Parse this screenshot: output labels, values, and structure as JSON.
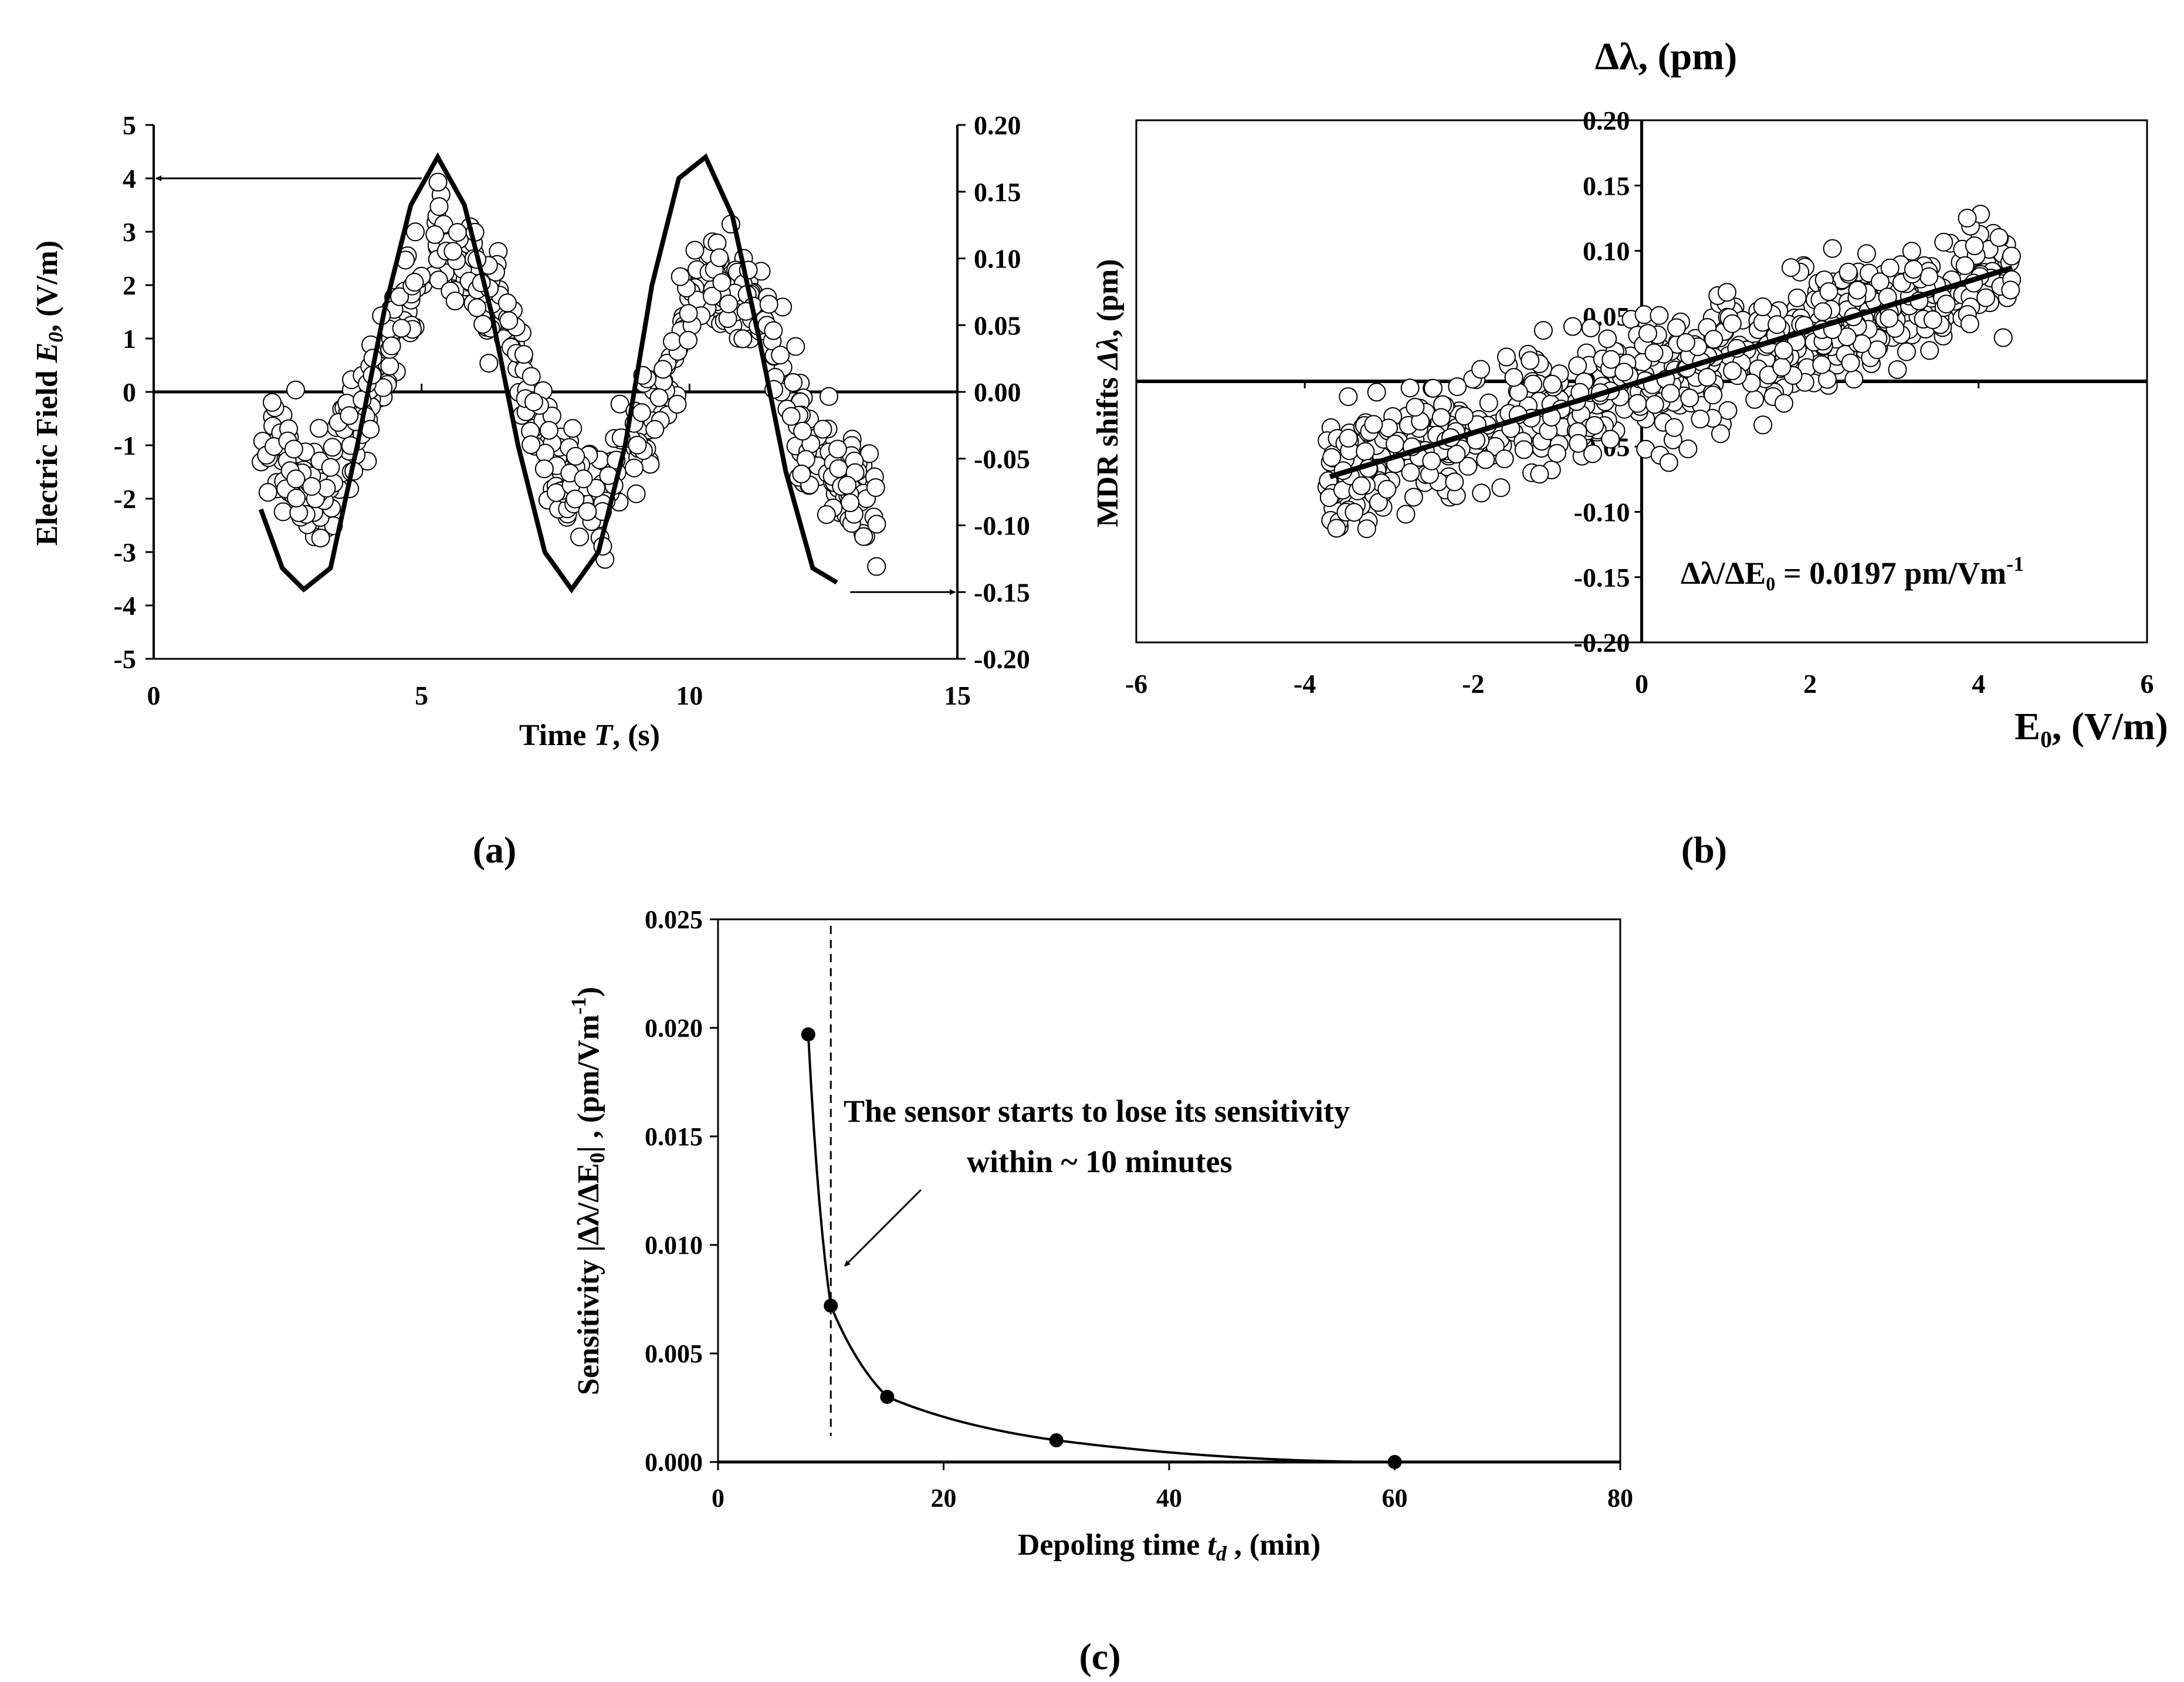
{
  "chart_data": [
    {
      "id": "a",
      "type": "scatter",
      "panel_label": "(a)",
      "xlabel_prefix": "Time ",
      "xlabel_var": "T",
      "xlabel_suffix": ", (s)",
      "ylabel_left_prefix": "Electric Field ",
      "ylabel_left_var": "E",
      "ylabel_left_sub": "0",
      "ylabel_left_suffix": ", (V/m)",
      "ylabel_right_prefix": "MDR shifts ",
      "ylabel_right_var": "Δλ",
      "ylabel_right_suffix": ", (pm)",
      "xlim": [
        0,
        15
      ],
      "ylim_left": [
        -5,
        5
      ],
      "ylim_right": [
        -0.2,
        0.2
      ],
      "xticks": [
        "0",
        "5",
        "10",
        "15"
      ],
      "yticks_left": [
        "5",
        "4",
        "3",
        "2",
        "1",
        "0",
        "-1",
        "-2",
        "-3",
        "-4",
        "-5"
      ],
      "yticks_right": [
        "0.20",
        "0.15",
        "0.10",
        "0.05",
        "0.00",
        "-0.05",
        "-0.10",
        "-0.15",
        "-0.20"
      ],
      "series": [
        {
          "name": "Electric field E0 (left axis)",
          "style": "line",
          "x": [
            2.0,
            2.4,
            2.8,
            3.3,
            3.8,
            4.3,
            4.8,
            5.3,
            5.8,
            6.3,
            6.8,
            7.3,
            7.8,
            8.3,
            8.8,
            9.3,
            9.8,
            10.3,
            10.8,
            11.3,
            11.8,
            12.3,
            12.8
          ],
          "y": [
            -2.2,
            -3.3,
            -3.7,
            -3.3,
            -1.0,
            1.5,
            3.5,
            4.4,
            3.5,
            1.5,
            -1.0,
            -3.0,
            -3.7,
            -3.0,
            -1.0,
            2.0,
            4.0,
            4.4,
            3.3,
            1.0,
            -1.5,
            -3.3,
            -3.6
          ]
        },
        {
          "name": "MDR shifts Δλ (right axis)",
          "style": "markers",
          "trend_x": [
            2.0,
            3.2,
            4.5,
            5.3,
            6.5,
            7.5,
            8.3,
            9.2,
            10.2,
            11.2,
            12.3,
            13.5
          ],
          "trend_y": [
            -0.03,
            -0.075,
            0.04,
            0.12,
            0.06,
            -0.06,
            -0.08,
            -0.02,
            0.08,
            0.07,
            -0.05,
            -0.08
          ],
          "spread": 0.04,
          "count": 620
        }
      ],
      "annotations": [
        {
          "text": "arrow pointing to left axis",
          "from": [
            5.0,
            4.0
          ],
          "to": [
            0.0,
            4.0
          ]
        },
        {
          "text": "arrow pointing to right axis",
          "from": [
            13.0,
            -0.15
          ],
          "to": [
            15.0,
            -0.15
          ]
        }
      ]
    },
    {
      "id": "b",
      "type": "scatter",
      "panel_label": "(b)",
      "title": "Δλ, (pm)",
      "xlabel": "E₀, (V/m)",
      "xlim": [
        -6,
        6
      ],
      "ylim": [
        -0.2,
        0.2
      ],
      "xticks": [
        "-6",
        "-4",
        "-2",
        "0",
        "2",
        "4",
        "6"
      ],
      "yticks": [
        "0.20",
        "0.15",
        "0.10",
        "0.05",
        "0.00",
        "-0.05",
        "-0.10",
        "-0.15",
        "-0.20"
      ],
      "grid": false,
      "fit": {
        "slope": 0.0197,
        "x": [
          -3.7,
          4.4
        ],
        "y": [
          -0.073,
          0.087
        ]
      },
      "fit_label": "Δλ/ΔE₀ = 0.0197 pm/Vm",
      "fit_label_sup": "-1",
      "points": {
        "x_range": [
          -3.75,
          4.4
        ],
        "slope": 0.0197,
        "spread": 0.045,
        "count": 750
      }
    },
    {
      "id": "c",
      "type": "line",
      "panel_label": "(c)",
      "xlabel_prefix": "Depoling time ",
      "xlabel_var": "t",
      "xlabel_sub": "d",
      "xlabel_suffix": " , (min)",
      "ylabel_prefix": "Sensitivity |Δλ/ΔE",
      "ylabel_sub": "0",
      "ylabel_mid": "| , (pm/Vm",
      "ylabel_sup": "-1",
      "ylabel_suffix": ")",
      "xlim": [
        0,
        80
      ],
      "ylim": [
        0,
        0.025
      ],
      "xticks": [
        "0",
        "20",
        "40",
        "60",
        "80"
      ],
      "yticks": [
        "0.025",
        "0.020",
        "0.015",
        "0.010",
        "0.005",
        "0.000"
      ],
      "x": [
        8,
        10,
        15,
        30,
        60
      ],
      "y": [
        0.0197,
        0.0072,
        0.003,
        0.001,
        0.0
      ],
      "dashed_line_x": 10,
      "annotation_line1": "The sensor starts to lose its sensitivity",
      "annotation_line2": "within ~ 10 minutes"
    }
  ]
}
